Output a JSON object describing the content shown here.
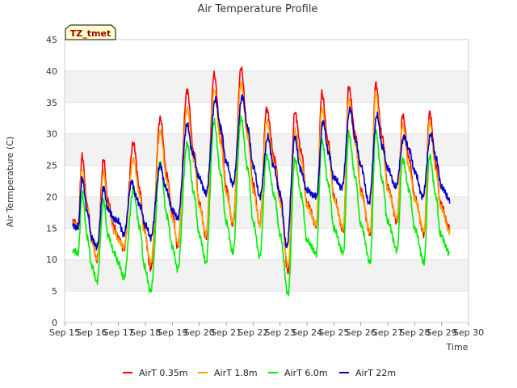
{
  "chart_data": {
    "type": "line",
    "title": "Air Temperature Profile",
    "xlabel": "Time",
    "ylabel": "Air Termperature (C)",
    "tag": "TZ_tmet",
    "xlim": [
      15,
      30
    ],
    "ylim": [
      0,
      45
    ],
    "x_tick_values": [
      15,
      16,
      17,
      18,
      19,
      20,
      21,
      22,
      23,
      24,
      25,
      26,
      27,
      28,
      29,
      30
    ],
    "x_tick_labels": [
      "Sep 15",
      "Sep 16",
      "Sep 17",
      "Sep 18",
      "Sep 19",
      "Sep 20",
      "Sep 21",
      "Sep 22",
      "Sep 23",
      "Sep 24",
      "Sep 25",
      "Sep 26",
      "Sep 27",
      "Sep 28",
      "Sep 29",
      "Sep 30"
    ],
    "y_ticks": [
      0,
      5,
      10,
      15,
      20,
      25,
      30,
      35,
      40,
      45
    ],
    "grid": "horizontal bands",
    "legend_position": "bottom",
    "series": [
      {
        "name": "AirT 0.35m",
        "color": "#ff0000",
        "x": [
          15.3,
          15.5,
          15.65,
          15.85,
          16.0,
          16.2,
          16.45,
          16.6,
          16.85,
          17.0,
          17.2,
          17.55,
          17.8,
          17.95,
          18.2,
          18.55,
          18.8,
          19.0,
          19.2,
          19.55,
          19.8,
          20.0,
          20.25,
          20.55,
          20.8,
          21.0,
          21.25,
          21.55,
          21.8,
          22.0,
          22.25,
          22.5,
          22.8,
          23.0,
          23.3,
          23.55,
          23.8,
          24.0,
          24.35,
          24.55,
          24.8,
          25.0,
          25.35,
          25.55,
          25.8,
          26.0,
          26.35,
          26.55,
          26.8,
          27.0,
          27.35,
          27.55,
          27.8,
          28.0,
          28.35,
          28.55,
          28.8,
          28.95,
          29.3
        ],
        "y": [
          16,
          15.5,
          26.5,
          18.5,
          13.5,
          10,
          26,
          19.5,
          15,
          13.5,
          11.5,
          28.5,
          21,
          15,
          8.5,
          32.5,
          23.5,
          17.5,
          12,
          37,
          27,
          19,
          13.5,
          39.5,
          30,
          21.5,
          15.5,
          40.5,
          30.5,
          22,
          15.5,
          34,
          26,
          20,
          8,
          33.5,
          27,
          19,
          15.5,
          36.5,
          28.5,
          20,
          14.5,
          37.5,
          30,
          21,
          14,
          38,
          29.5,
          21.5,
          16,
          33,
          26,
          20,
          14,
          33.5,
          25,
          19,
          15
        ]
      },
      {
        "name": "AirT 1.8m",
        "color": "#ffa500",
        "x": [
          15.3,
          15.5,
          15.65,
          15.85,
          16.0,
          16.2,
          16.45,
          16.6,
          16.85,
          17.0,
          17.2,
          17.55,
          17.8,
          17.95,
          18.2,
          18.55,
          18.8,
          19.0,
          19.2,
          19.55,
          19.8,
          20.0,
          20.25,
          20.55,
          20.8,
          21.0,
          21.25,
          21.55,
          21.8,
          22.0,
          22.25,
          22.5,
          22.8,
          23.0,
          23.3,
          23.55,
          23.8,
          24.0,
          24.35,
          24.55,
          24.8,
          25.0,
          25.35,
          25.55,
          25.8,
          26.0,
          26.35,
          26.55,
          26.8,
          27.0,
          27.35,
          27.55,
          27.8,
          28.0,
          28.35,
          28.55,
          28.8,
          28.95,
          29.3
        ],
        "y": [
          15.8,
          15.2,
          24.5,
          18,
          13,
          10,
          24,
          18.5,
          14.5,
          13,
          12,
          26,
          20,
          14.5,
          9.5,
          30.5,
          22.5,
          16.5,
          12.5,
          34,
          26,
          18.5,
          14,
          37,
          28.5,
          20.5,
          16,
          38,
          29.5,
          21,
          15.5,
          32,
          25,
          19,
          9,
          30.5,
          25.5,
          18.5,
          15.5,
          34,
          27.5,
          19.5,
          15,
          35.5,
          28.5,
          20.5,
          14.5,
          36.5,
          28,
          21,
          16.5,
          31.5,
          24.5,
          19.5,
          14.5,
          32,
          24,
          18.5,
          14.5
        ]
      },
      {
        "name": "AirT 6.0m",
        "color": "#00ee00",
        "x": [
          15.3,
          15.5,
          15.65,
          15.85,
          16.0,
          16.2,
          16.45,
          16.6,
          16.85,
          17.0,
          17.2,
          17.55,
          17.8,
          17.95,
          18.2,
          18.55,
          18.8,
          19.0,
          19.2,
          19.55,
          19.8,
          20.0,
          20.25,
          20.55,
          20.8,
          21.0,
          21.25,
          21.55,
          21.8,
          22.0,
          22.25,
          22.5,
          22.8,
          23.0,
          23.3,
          23.55,
          23.8,
          24.0,
          24.35,
          24.55,
          24.8,
          25.0,
          25.35,
          25.55,
          25.8,
          26.0,
          26.35,
          26.55,
          26.8,
          27.0,
          27.35,
          27.55,
          27.8,
          28.0,
          28.35,
          28.55,
          28.8,
          28.95,
          29.3
        ],
        "y": [
          11.5,
          11,
          20.5,
          13.5,
          9,
          6.5,
          19.5,
          14,
          11,
          9.5,
          7,
          21,
          15,
          9,
          5,
          25.5,
          17,
          12,
          8.5,
          28.5,
          20.5,
          14,
          9.5,
          32,
          23.5,
          16,
          11,
          32.5,
          24.5,
          16,
          10.5,
          26.5,
          20,
          14,
          4.5,
          26,
          20,
          13,
          11,
          29,
          22,
          15,
          11,
          30,
          23,
          15.5,
          9.5,
          30.5,
          22.5,
          16,
          11.5,
          26,
          21,
          15,
          9.5,
          26.5,
          20,
          14,
          11
        ]
      },
      {
        "name": "AirT 22m",
        "color": "#0000cc",
        "x": [
          15.3,
          15.5,
          15.65,
          15.85,
          16.0,
          16.2,
          16.45,
          16.6,
          16.85,
          17.0,
          17.2,
          17.5,
          17.65,
          17.8,
          18.0,
          18.2,
          18.55,
          18.75,
          19.0,
          19.2,
          19.55,
          19.75,
          20.0,
          20.25,
          20.6,
          20.8,
          21.0,
          21.25,
          21.6,
          21.8,
          22.0,
          22.25,
          22.55,
          22.75,
          23.0,
          23.25,
          23.55,
          23.75,
          24.0,
          24.35,
          24.6,
          24.8,
          25.0,
          25.3,
          25.6,
          25.8,
          26.0,
          26.3,
          26.6,
          26.8,
          27.0,
          27.3,
          27.6,
          27.8,
          28.0,
          28.3,
          28.6,
          28.8,
          29.0,
          29.3
        ],
        "y": [
          15.5,
          15,
          23,
          17.5,
          13.5,
          12,
          21.5,
          18,
          16.5,
          16,
          14,
          22.5,
          20,
          18.5,
          15.5,
          13.5,
          25,
          21.5,
          18,
          16.5,
          31.5,
          27,
          23,
          20.5,
          35.5,
          31,
          25.5,
          22,
          36,
          31,
          25,
          20,
          29.5,
          25,
          20.5,
          12,
          29.5,
          24.5,
          21,
          20,
          32,
          27,
          23,
          21.5,
          34,
          29,
          25,
          19,
          33,
          28,
          24.5,
          21.5,
          29.5,
          27.5,
          24,
          20,
          30,
          26,
          21.5,
          19.5
        ]
      }
    ]
  }
}
